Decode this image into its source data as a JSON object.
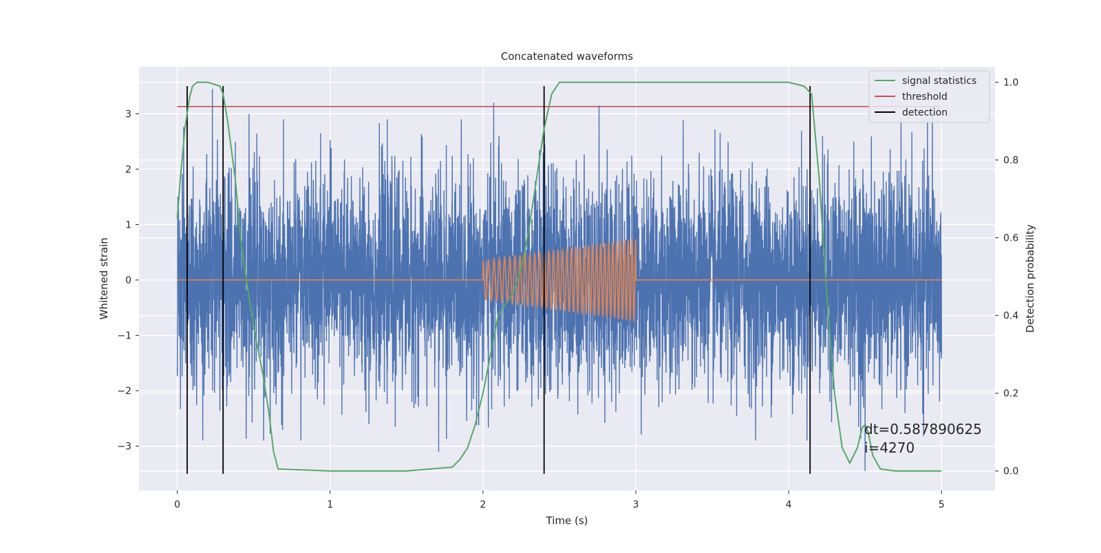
{
  "chart_data": {
    "type": "line",
    "title": "Concatenated waveforms",
    "xlabel": "Time (s)",
    "ylabel": "Whitened strain",
    "y2label": "Detection probability",
    "xlim": [
      -0.25,
      5.35
    ],
    "ylim": [
      -3.8,
      3.85
    ],
    "y2lim": [
      -0.05,
      1.04
    ],
    "xticks": [
      0,
      1,
      2,
      3,
      4,
      5
    ],
    "yticks": [
      -3,
      -2,
      -1,
      0,
      1,
      2,
      3
    ],
    "y2ticks": [
      0.0,
      0.2,
      0.4,
      0.6,
      0.8,
      1.0
    ],
    "grid": true,
    "legend_position": "top-right",
    "series": [
      {
        "name": "",
        "kind": "noise_strain",
        "axis": "left",
        "color": "#4c72b0",
        "x_range": [
          0,
          5
        ],
        "envelope_typical": [
          -2.2,
          2.2
        ],
        "notable_peaks": [
          {
            "x": 0.23,
            "y": 3.45
          },
          {
            "x": 0.47,
            "y": 3.0
          },
          {
            "x": 2.07,
            "y": 3.2
          },
          {
            "x": 2.76,
            "y": 3.15
          },
          {
            "x": 4.94,
            "y": 3.0
          },
          {
            "x": 1.71,
            "y": -3.1
          },
          {
            "x": 4.5,
            "y": -3.45
          }
        ]
      },
      {
        "name": "",
        "kind": "injected_chirp",
        "axis": "left",
        "color": "#dd8452",
        "x_range": [
          0,
          5
        ],
        "chirp_start": 2.0,
        "chirp_end": 3.0,
        "amplitude_start": 0.35,
        "amplitude_end": 0.75,
        "cycles": 34
      },
      {
        "name": "signal statistics",
        "axis": "right",
        "color": "#55a868",
        "x": [
          0,
          0.02,
          0.05,
          0.08,
          0.1,
          0.13,
          0.2,
          0.28,
          0.3,
          0.33,
          0.38,
          0.42,
          0.48,
          0.52,
          0.56,
          0.6,
          0.63,
          0.66,
          1.0,
          1.5,
          1.8,
          1.85,
          1.9,
          1.95,
          2.0,
          2.05,
          2.1,
          2.15,
          2.2,
          2.25,
          2.3,
          2.35,
          2.4,
          2.45,
          2.5,
          2.6,
          3.0,
          3.5,
          4.0,
          4.1,
          4.15,
          4.2,
          4.25,
          4.3,
          4.35,
          4.4,
          4.45,
          4.48,
          4.5,
          4.52,
          4.55,
          4.6,
          4.7,
          5.0
        ],
        "y": [
          0.65,
          0.75,
          0.88,
          0.96,
          0.99,
          1.0,
          1.0,
          0.99,
          0.97,
          0.9,
          0.75,
          0.58,
          0.42,
          0.33,
          0.25,
          0.15,
          0.05,
          0.005,
          0.0,
          0.0,
          0.01,
          0.03,
          0.06,
          0.12,
          0.2,
          0.3,
          0.4,
          0.43,
          0.46,
          0.52,
          0.62,
          0.75,
          0.88,
          0.97,
          1.0,
          1.0,
          1.0,
          1.0,
          1.0,
          0.99,
          0.97,
          0.75,
          0.45,
          0.2,
          0.06,
          0.02,
          0.06,
          0.11,
          0.12,
          0.1,
          0.04,
          0.005,
          0.0,
          0.0
        ]
      },
      {
        "name": "threshold",
        "axis": "left",
        "color": "#c44e52",
        "x": [
          0,
          5
        ],
        "y": [
          3.13,
          3.13
        ]
      },
      {
        "name": "detection",
        "axis": "left",
        "color": "#000000",
        "vlines": [
          0.065,
          0.3,
          2.4,
          4.14
        ],
        "y_span": [
          -3.5,
          3.5
        ]
      }
    ],
    "annotations": [
      "dt=0.587890625",
      "i=4270"
    ]
  }
}
